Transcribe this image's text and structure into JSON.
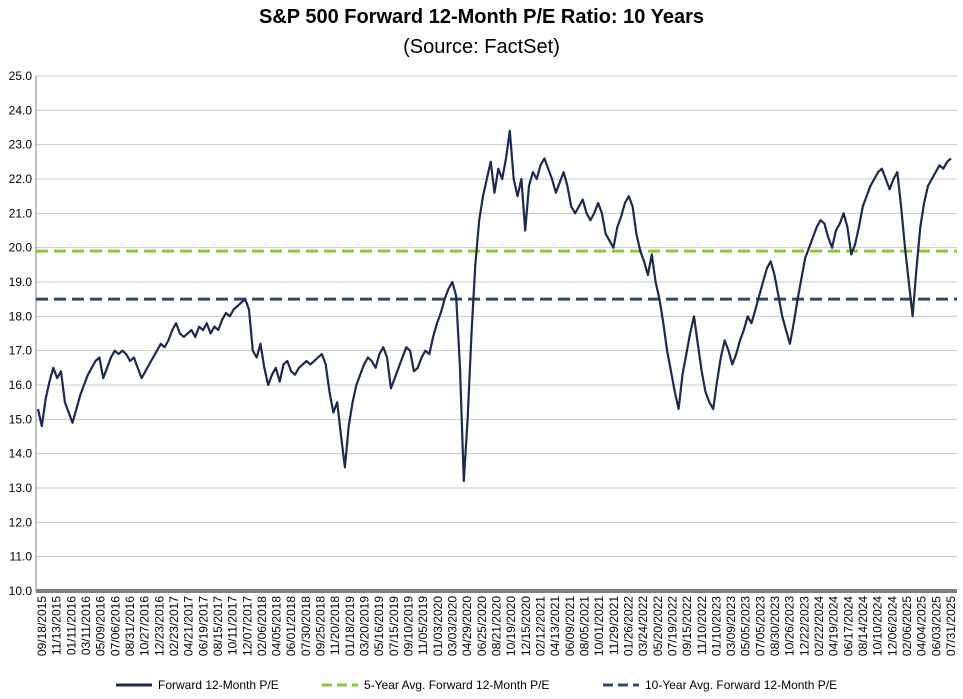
{
  "chart_data": {
    "type": "line",
    "title": "S&P 500 Forward 12-Month P/E Ratio: 10 Years",
    "subtitle": "(Source: FactSet)",
    "xlabel": "",
    "ylabel": "",
    "ylim": [
      10.0,
      25.0
    ],
    "y_ticks": [
      "10.0",
      "11.0",
      "12.0",
      "13.0",
      "14.0",
      "15.0",
      "16.0",
      "17.0",
      "18.0",
      "19.0",
      "20.0",
      "21.0",
      "22.0",
      "23.0",
      "24.0",
      "25.0"
    ],
    "x_tick_labels": [
      "09/18/2015",
      "11/13/2015",
      "01/11/2016",
      "03/11/2016",
      "05/09/2016",
      "07/06/2016",
      "08/31/2016",
      "10/27/2016",
      "12/23/2016",
      "02/23/2017",
      "04/21/2017",
      "06/19/2017",
      "08/15/2017",
      "10/11/2017",
      "12/07/2017",
      "02/06/2018",
      "04/05/2018",
      "06/01/2018",
      "07/30/2018",
      "09/25/2018",
      "11/20/2018",
      "01/18/2019",
      "03/20/2019",
      "05/16/2019",
      "07/15/2019",
      "09/10/2019",
      "11/05/2019",
      "01/03/2020",
      "03/03/2020",
      "04/29/2020",
      "06/25/2020",
      "08/21/2020",
      "10/19/2020",
      "12/15/2020",
      "02/12/2021",
      "04/13/2021",
      "06/09/2021",
      "08/05/2021",
      "10/01/2021",
      "11/29/2021",
      "01/26/2022",
      "03/24/2022",
      "05/20/2022",
      "07/19/2022",
      "09/15/2022",
      "11/10/2022",
      "01/10/2023",
      "03/09/2023",
      "05/05/2023",
      "07/05/2023",
      "08/30/2023",
      "10/26/2023",
      "12/22/2023",
      "02/22/2024",
      "04/19/2024",
      "06/17/2024",
      "08/14/2024",
      "10/10/2024",
      "12/06/2024",
      "02/06/2025",
      "04/04/2025",
      "06/03/2025",
      "07/31/2025"
    ],
    "grid": true,
    "legend_position": "bottom",
    "series": [
      {
        "name": "Forward 12-Month P/E",
        "color": "#1b2a4e",
        "style": "solid",
        "values": [
          15.3,
          14.8,
          15.6,
          16.1,
          16.5,
          16.2,
          16.4,
          15.5,
          15.2,
          14.9,
          15.3,
          15.7,
          16.0,
          16.3,
          16.5,
          16.7,
          16.8,
          16.2,
          16.5,
          16.8,
          17.0,
          16.9,
          17.0,
          16.9,
          16.7,
          16.8,
          16.5,
          16.2,
          16.4,
          16.6,
          16.8,
          17.0,
          17.2,
          17.1,
          17.3,
          17.6,
          17.8,
          17.5,
          17.4,
          17.5,
          17.6,
          17.4,
          17.7,
          17.6,
          17.8,
          17.5,
          17.7,
          17.6,
          17.9,
          18.1,
          18.0,
          18.2,
          18.3,
          18.4,
          18.5,
          18.2,
          17.0,
          16.8,
          17.2,
          16.5,
          16.0,
          16.3,
          16.5,
          16.1,
          16.6,
          16.7,
          16.4,
          16.3,
          16.5,
          16.6,
          16.7,
          16.6,
          16.7,
          16.8,
          16.9,
          16.6,
          15.8,
          15.2,
          15.5,
          14.5,
          13.6,
          14.8,
          15.5,
          16.0,
          16.3,
          16.6,
          16.8,
          16.7,
          16.5,
          16.9,
          17.1,
          16.8,
          15.9,
          16.2,
          16.5,
          16.8,
          17.1,
          17.0,
          16.4,
          16.5,
          16.8,
          17.0,
          16.9,
          17.4,
          17.8,
          18.1,
          18.5,
          18.8,
          19.0,
          18.6,
          16.5,
          13.2,
          15.0,
          17.5,
          19.5,
          20.8,
          21.5,
          22.0,
          22.5,
          21.6,
          22.3,
          22.0,
          22.6,
          23.4,
          22.0,
          21.5,
          22.0,
          20.5,
          21.8,
          22.2,
          22.0,
          22.4,
          22.6,
          22.3,
          22.0,
          21.6,
          21.9,
          22.2,
          21.8,
          21.2,
          21.0,
          21.2,
          21.4,
          21.0,
          20.8,
          21.0,
          21.3,
          21.0,
          20.4,
          20.2,
          20.0,
          20.6,
          20.9,
          21.3,
          21.5,
          21.2,
          20.4,
          19.9,
          19.6,
          19.2,
          19.8,
          19.0,
          18.5,
          17.8,
          17.0,
          16.4,
          15.8,
          15.3,
          16.3,
          16.9,
          17.5,
          18.0,
          17.2,
          16.4,
          15.8,
          15.5,
          15.3,
          16.1,
          16.8,
          17.3,
          17.0,
          16.6,
          16.9,
          17.3,
          17.6,
          18.0,
          17.8,
          18.2,
          18.6,
          19.0,
          19.4,
          19.6,
          19.2,
          18.6,
          18.0,
          17.6,
          17.2,
          17.8,
          18.5,
          19.1,
          19.7,
          20.0,
          20.3,
          20.6,
          20.8,
          20.7,
          20.3,
          20.0,
          20.5,
          20.7,
          21.0,
          20.6,
          19.8,
          20.1,
          20.6,
          21.2,
          21.5,
          21.8,
          22.0,
          22.2,
          22.3,
          22.0,
          21.7,
          22.0,
          22.2,
          21.2,
          20.0,
          19.0,
          18.0,
          19.4,
          20.6,
          21.3,
          21.8,
          22.0,
          22.2,
          22.4,
          22.3,
          22.5,
          22.6
        ]
      },
      {
        "name": "5-Year Avg. Forward 12-Month P/E",
        "color": "#8dc63f",
        "style": "dashed",
        "value": 19.9
      },
      {
        "name": "10-Year Avg. Forward 12-Month P/E",
        "color": "#2e4a6b",
        "style": "dashed",
        "value": 18.5
      }
    ]
  }
}
